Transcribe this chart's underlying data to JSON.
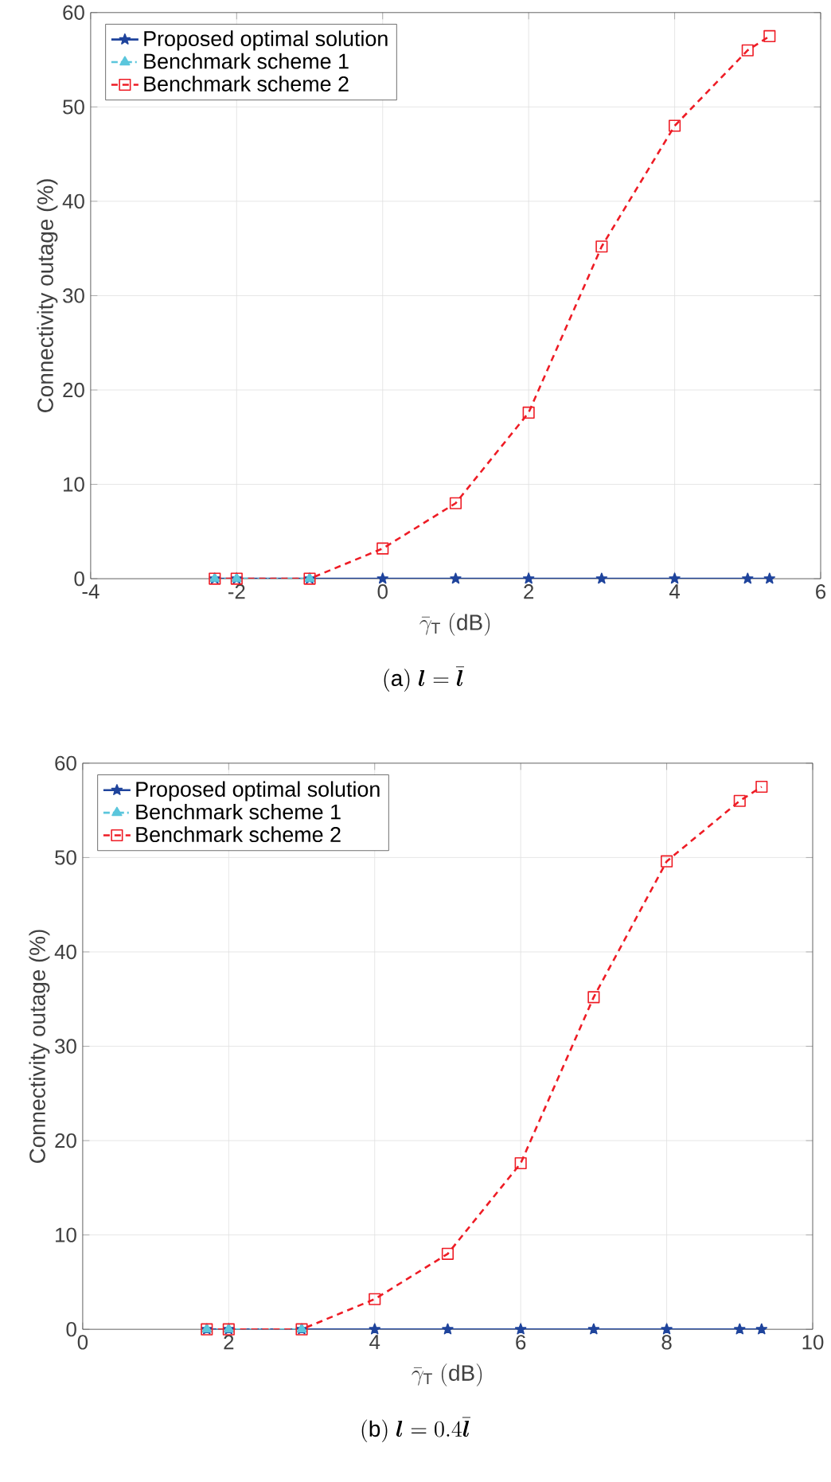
{
  "chart_data": [
    {
      "type": "line",
      "xlabel": "\\bar{\\gamma}_{\\mathrm{T}}\\ (\\mathrm{dB})",
      "ylabel": "Connectivity outage (%)",
      "annotations": [
        "\\mathrm{(a)}\\ \\boldsymbol{l}=\\bar{\\boldsymbol{l}}"
      ],
      "x": [
        -2.3,
        -2,
        -1,
        0,
        1,
        2,
        3,
        4,
        5,
        5.3
      ],
      "series": [
        {
          "name": "Proposed optimal solution",
          "color": "#1f449c",
          "marker": "star",
          "line_style": "solid",
          "values": [
            0,
            0,
            0,
            0,
            0,
            0,
            0,
            0,
            0,
            0
          ]
        },
        {
          "name": "Benchmark scheme 1",
          "color": "#5bc6dc",
          "marker": "triangle",
          "line_style": "dashdot",
          "values": [
            0,
            0,
            0,
            null,
            null,
            null,
            null,
            null,
            null,
            null
          ]
        },
        {
          "name": "Benchmark scheme 2",
          "color": "#ee1c25",
          "marker": "square",
          "line_style": "dashed",
          "values": [
            0,
            0,
            0,
            3.2,
            8,
            17.6,
            35.2,
            48,
            56,
            57.5
          ]
        }
      ],
      "xlim": [
        -4,
        6
      ],
      "ylim": [
        0,
        60
      ],
      "xticks": [
        -4,
        -2,
        0,
        2,
        4,
        6
      ],
      "yticks": [
        0,
        10,
        20,
        30,
        40,
        50,
        60
      ],
      "grid": true,
      "legend": "top left"
    },
    {
      "type": "line",
      "xlabel": "\\bar{\\gamma}_{\\mathrm{T}}\\ (\\mathrm{dB})",
      "ylabel": "Connectivity outage (%)",
      "annotations": [
        "\\mathrm{(b)}\\ \\boldsymbol{l}=0.4\\bar{\\boldsymbol{l}}"
      ],
      "x": [
        1.7,
        2,
        3,
        4,
        5,
        6,
        7,
        8,
        9,
        9.3
      ],
      "series": [
        {
          "name": "Proposed optimal solution",
          "color": "#1f449c",
          "marker": "star",
          "line_style": "solid",
          "values": [
            0,
            0,
            0,
            0,
            0,
            0,
            0,
            0,
            0,
            0
          ]
        },
        {
          "name": "Benchmark scheme 1",
          "color": "#5bc6dc",
          "marker": "triangle",
          "line_style": "dashdot",
          "values": [
            0,
            0,
            0,
            null,
            null,
            null,
            null,
            null,
            null,
            null
          ]
        },
        {
          "name": "Benchmark scheme 2",
          "color": "#ee1c25",
          "marker": "square",
          "line_style": "dashed",
          "values": [
            0,
            0,
            0,
            3.2,
            8,
            17.6,
            35.2,
            49.6,
            56,
            57.5
          ]
        }
      ],
      "xlim": [
        0,
        10
      ],
      "ylim": [
        0,
        60
      ],
      "xticks": [
        0,
        2,
        4,
        6,
        8,
        10
      ],
      "yticks": [
        0,
        10,
        20,
        30,
        40,
        50,
        60
      ],
      "grid": true,
      "legend": "top left"
    }
  ]
}
